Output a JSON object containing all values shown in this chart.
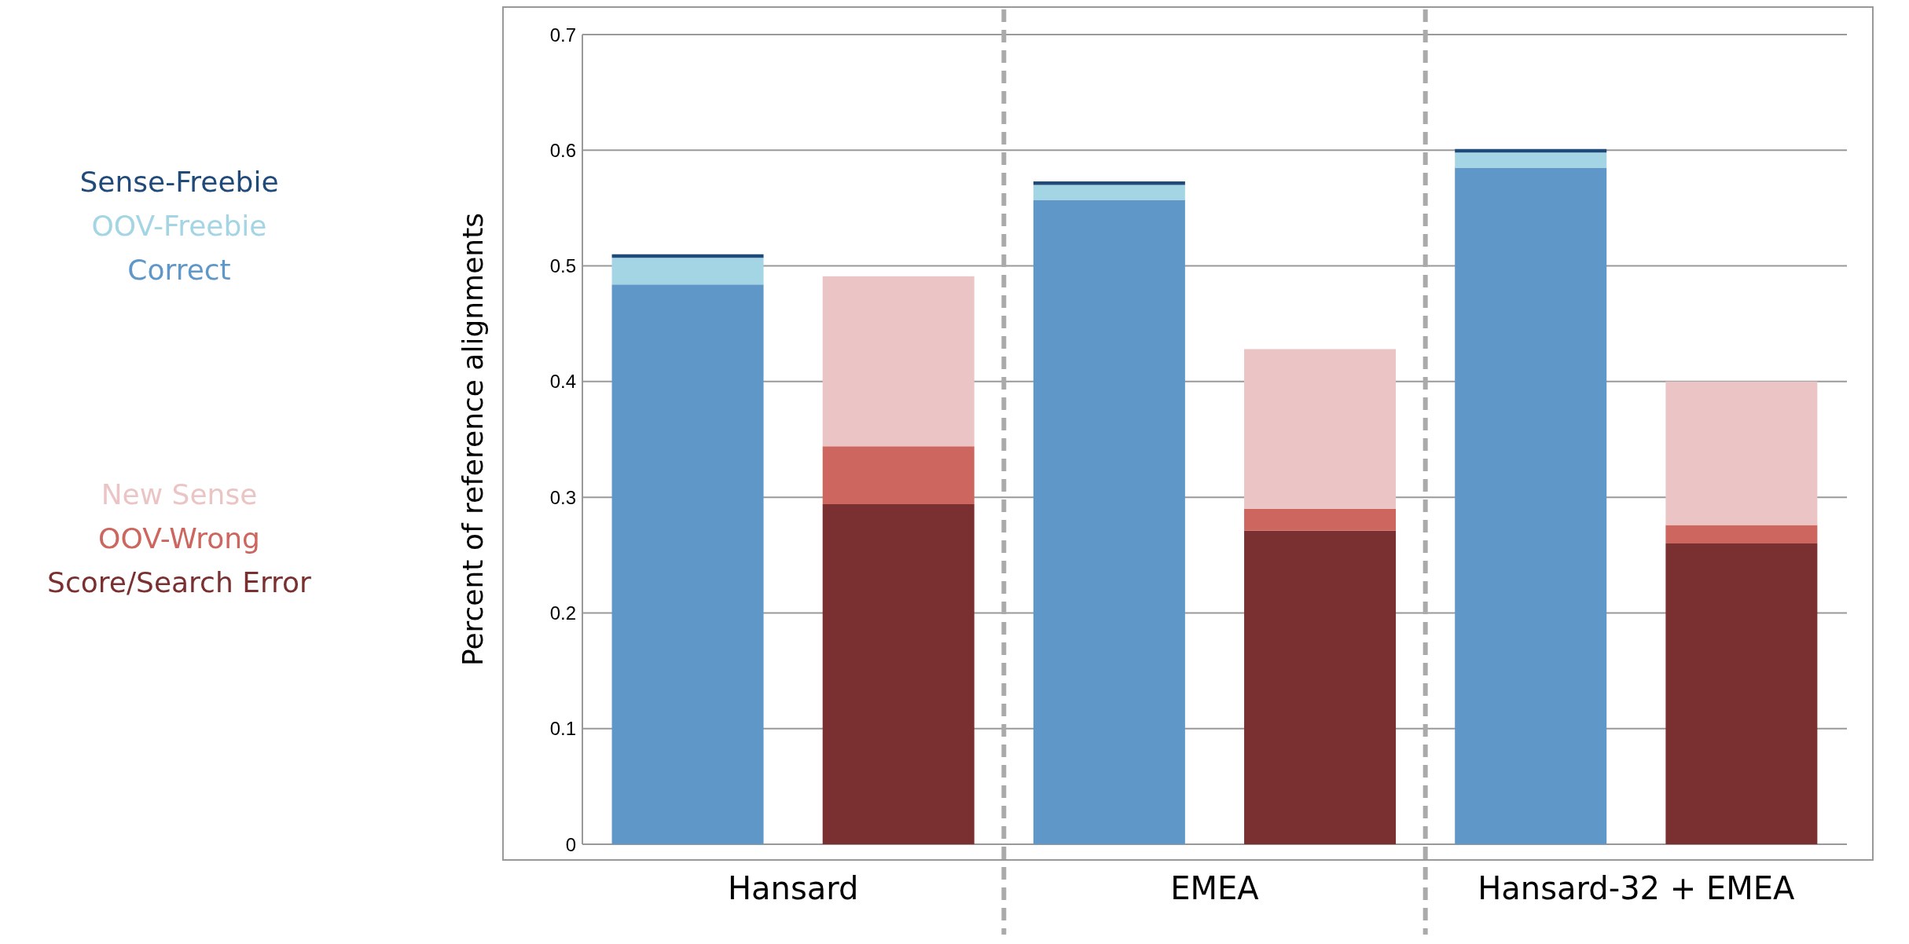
{
  "chart_data": {
    "type": "bar",
    "stacked": true,
    "ylabel": "Percent of reference alignments",
    "categories": [
      "Hansard",
      null,
      "EMEA",
      null,
      "Hansard-32 + EMEA",
      null
    ],
    "series": [
      {
        "name": "Correct",
        "color": "#6097c9",
        "values": [
          0.484,
          null,
          0.557,
          null,
          0.585,
          null
        ]
      },
      {
        "name": "OOV-Freebie",
        "color": "#a4d5e4",
        "values": [
          0.023,
          null,
          0.013,
          null,
          0.013,
          null
        ]
      },
      {
        "name": "Sense-Freebie",
        "color": "#1f4a7a",
        "values": [
          0.003,
          null,
          0.003,
          null,
          0.003,
          null
        ]
      },
      {
        "name": "Score/Search Error",
        "color": "#7a3030",
        "values": [
          null,
          0.294,
          null,
          0.271,
          null,
          0.26
        ]
      },
      {
        "name": "OOV-Wrong",
        "color": "#cd665e",
        "values": [
          null,
          0.05,
          null,
          0.019,
          null,
          0.016
        ]
      },
      {
        "name": "New Sense",
        "color": "#ebc5c5",
        "values": [
          null,
          0.147,
          null,
          0.138,
          null,
          0.124
        ]
      }
    ],
    "ylim": [
      0,
      0.7
    ],
    "yticks": [
      0,
      0.1,
      0.2,
      0.3,
      0.4,
      0.5,
      0.6,
      0.7
    ],
    "grid": true,
    "legend": "left"
  }
}
